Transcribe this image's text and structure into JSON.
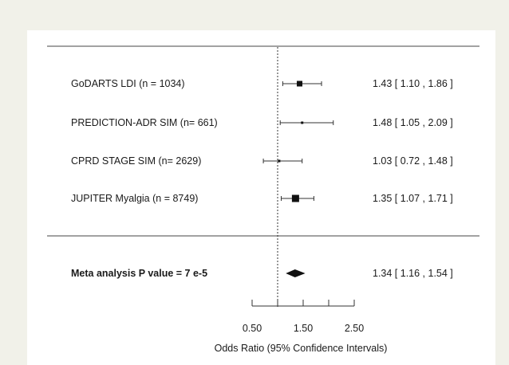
{
  "chart_data": {
    "type": "forest",
    "title": "",
    "xlabel": "Odds Ratio (95% Confidence Intervals)",
    "xlim": [
      0.5,
      2.5
    ],
    "x_ticks": [
      0.5,
      1.0,
      1.5,
      2.0,
      2.5
    ],
    "x_tick_labels": [
      "0.50",
      "",
      "1.50",
      "",
      "2.50"
    ],
    "reference_line": 1.0,
    "studies": [
      {
        "label": "GoDARTS LDI (n = 1034)",
        "or": 1.43,
        "lower": 1.1,
        "upper": 1.86,
        "ci_text": "1.43 [ 1.10 , 1.86 ]",
        "weight": 2
      },
      {
        "label": "PREDICTION-ADR SIM (n= 661)",
        "or": 1.48,
        "lower": 1.05,
        "upper": 2.09,
        "ci_text": "1.48 [ 1.05 , 2.09 ]",
        "weight": 1
      },
      {
        "label": "CPRD STAGE SIM (n= 2629)",
        "or": 1.03,
        "lower": 0.72,
        "upper": 1.48,
        "ci_text": "1.03 [ 0.72 , 1.48 ]",
        "weight": 1
      },
      {
        "label": "JUPITER Myalgia (n = 8749)",
        "or": 1.35,
        "lower": 1.07,
        "upper": 1.71,
        "ci_text": "1.35 [ 1.07 , 1.71 ]",
        "weight": 3
      }
    ],
    "summary": {
      "label": "Meta analysis P value = 7 e-5",
      "or": 1.34,
      "lower": 1.16,
      "upper": 1.54,
      "ci_text": "1.34 [ 1.16 , 1.54 ]"
    }
  }
}
